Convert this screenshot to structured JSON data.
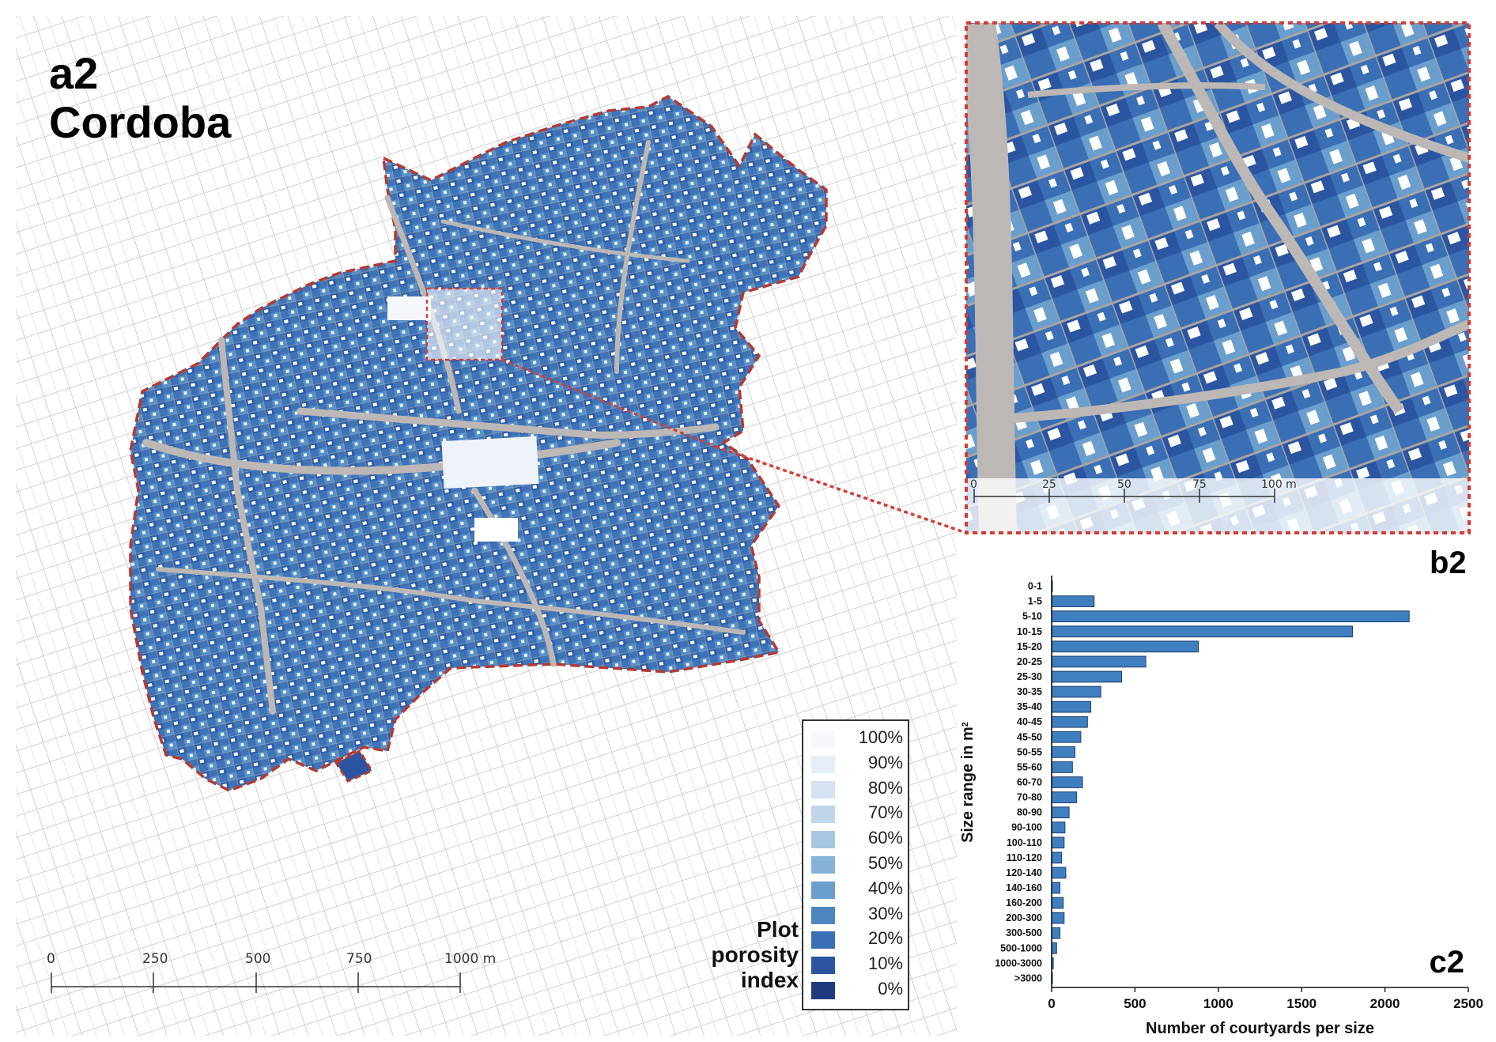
{
  "panels": {
    "main_title": [
      "a2",
      "Cordoba"
    ],
    "inset_tag": "b2",
    "chart_tag": "c2"
  },
  "legend": {
    "title": [
      "Plot",
      "porosity",
      "index"
    ],
    "items": [
      {
        "label": "100%",
        "color": "#f7f8fb"
      },
      {
        "label": "90%",
        "color": "#e6eef7"
      },
      {
        "label": "80%",
        "color": "#d4e2f1"
      },
      {
        "label": "70%",
        "color": "#bfd5ea"
      },
      {
        "label": "60%",
        "color": "#a6c6e2"
      },
      {
        "label": "50%",
        "color": "#86b2d8"
      },
      {
        "label": "40%",
        "color": "#6a9ecd"
      },
      {
        "label": "30%",
        "color": "#4c86c1"
      },
      {
        "label": "20%",
        "color": "#3a6fb5"
      },
      {
        "label": "10%",
        "color": "#2b55a1"
      },
      {
        "label": "0%",
        "color": "#1f3b80"
      }
    ]
  },
  "main_scale": {
    "ticks": [
      "0",
      "250",
      "500",
      "750",
      "1000 m"
    ]
  },
  "inset_scale": {
    "ticks": [
      "0",
      "25",
      "50",
      "75",
      "100 m"
    ]
  },
  "colors": {
    "boundary": "#b33a33",
    "inset_frame": "#d43c35",
    "street": "#bdb8b5",
    "background_lines": "#c9c9c9"
  },
  "chart_data": {
    "type": "bar",
    "orientation": "horizontal",
    "categories": [
      "0-1",
      "1-5",
      "5-10",
      "10-15",
      "15-20",
      "20-25",
      "25-30",
      "30-35",
      "35-40",
      "40-45",
      "45-50",
      "50-55",
      "55-60",
      "60-70",
      "70-80",
      "80-90",
      "90-100",
      "100-110",
      "110-120",
      "120-140",
      "140-160",
      "160-200",
      "200-300",
      "300-500",
      "500-1000",
      "1000-3000",
      ">3000"
    ],
    "values": [
      5,
      255,
      2145,
      1805,
      880,
      565,
      420,
      295,
      235,
      215,
      175,
      140,
      125,
      185,
      150,
      105,
      80,
      75,
      60,
      85,
      50,
      70,
      75,
      50,
      30,
      10,
      5
    ],
    "xlabel": "Number of courtyards per size",
    "ylabel": "Size range in m",
    "ylabel_superscript": "2",
    "xlim": [
      0,
      2500
    ],
    "xticks": [
      "0",
      "500",
      "1000",
      "1500",
      "2000",
      "2500"
    ],
    "bar_color": "#3f7fc0",
    "grid": false
  }
}
